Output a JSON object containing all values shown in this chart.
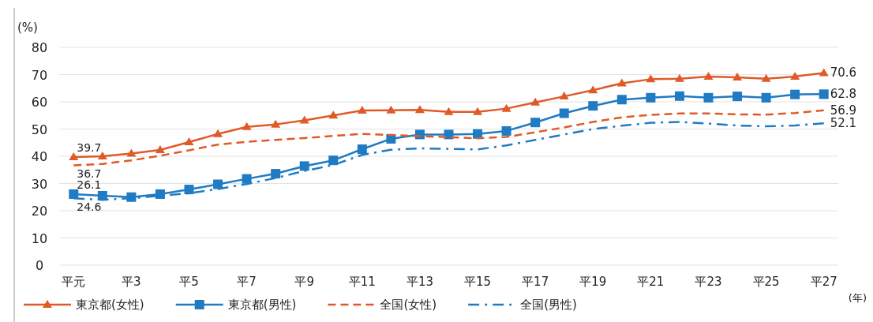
{
  "chart_data": {
    "type": "line",
    "ylabel": "(%)",
    "xlabel": "(年)",
    "categories": [
      "平元",
      null,
      "平3",
      null,
      "平5",
      null,
      "平7",
      null,
      "平9",
      null,
      "平11",
      null,
      "平13",
      null,
      "平15",
      null,
      "平17",
      null,
      "平19",
      null,
      "平21",
      null,
      "平23",
      null,
      "平25",
      null,
      "平27"
    ],
    "ylim": [
      0,
      80
    ],
    "yticks": [
      0,
      10,
      20,
      30,
      40,
      50,
      60,
      70,
      80
    ],
    "grid": "y",
    "legend": "bottom",
    "series": [
      {
        "name": "東京都(女性)",
        "color": "#e05a28",
        "marker": "triangle",
        "line_style": "solid",
        "values": [
          39.7,
          40.0,
          41.0,
          42.3,
          45.2,
          48.2,
          50.8,
          51.7,
          53.2,
          55.0,
          56.8,
          56.9,
          57.0,
          56.3,
          56.3,
          57.5,
          59.8,
          62.0,
          64.3,
          66.8,
          68.3,
          68.5,
          69.3,
          69.0,
          68.5,
          69.3,
          70.6
        ],
        "value_labels": [
          "39.7",
          null,
          null,
          null,
          null,
          null,
          null,
          null,
          null,
          null,
          null,
          null,
          null,
          null,
          null,
          null,
          null,
          null,
          null,
          null,
          null,
          null,
          null,
          null,
          null,
          null,
          "70.6"
        ]
      },
      {
        "name": "東京都(男性)",
        "color": "#1f7bc4",
        "marker": "square",
        "line_style": "solid",
        "values": [
          26.1,
          25.5,
          25.0,
          26.1,
          27.8,
          29.7,
          31.7,
          33.6,
          36.4,
          38.5,
          42.6,
          46.4,
          48.0,
          48.0,
          48.2,
          49.3,
          52.4,
          55.8,
          58.5,
          60.8,
          61.5,
          62.1,
          61.5,
          62.0,
          61.5,
          62.7,
          62.8
        ],
        "value_labels": [
          "26.1",
          null,
          null,
          null,
          null,
          null,
          null,
          null,
          null,
          null,
          null,
          null,
          null,
          null,
          null,
          null,
          null,
          null,
          null,
          null,
          null,
          null,
          null,
          null,
          null,
          null,
          "62.8"
        ]
      },
      {
        "name": "全国(女性)",
        "color": "#e05a28",
        "marker": "none",
        "line_style": "dashed",
        "values": [
          36.7,
          37.2,
          38.5,
          40.2,
          42.2,
          44.3,
          45.3,
          46.0,
          46.7,
          47.5,
          48.2,
          47.8,
          47.4,
          47.0,
          46.6,
          47.1,
          48.8,
          50.6,
          52.6,
          54.3,
          55.2,
          55.7,
          55.7,
          55.4,
          55.3,
          55.9,
          56.9
        ],
        "value_labels": [
          "36.7",
          null,
          null,
          null,
          null,
          null,
          null,
          null,
          null,
          null,
          null,
          null,
          null,
          null,
          null,
          null,
          null,
          null,
          null,
          null,
          null,
          null,
          null,
          null,
          null,
          null,
          "56.9"
        ]
      },
      {
        "name": "全国(男性)",
        "color": "#1f7bc4",
        "marker": "none",
        "line_style": "dashdot",
        "values": [
          24.6,
          24.0,
          24.6,
          25.5,
          26.4,
          28.0,
          29.8,
          32.0,
          34.6,
          36.8,
          40.5,
          42.4,
          42.9,
          42.7,
          42.5,
          44.0,
          46.0,
          48.0,
          50.0,
          51.2,
          52.3,
          52.6,
          52.0,
          51.3,
          51.0,
          51.3,
          52.1
        ],
        "value_labels": [
          "24.6",
          null,
          null,
          null,
          null,
          null,
          null,
          null,
          null,
          null,
          null,
          null,
          null,
          null,
          null,
          null,
          null,
          null,
          null,
          null,
          null,
          null,
          null,
          null,
          null,
          null,
          "52.1"
        ]
      }
    ]
  }
}
